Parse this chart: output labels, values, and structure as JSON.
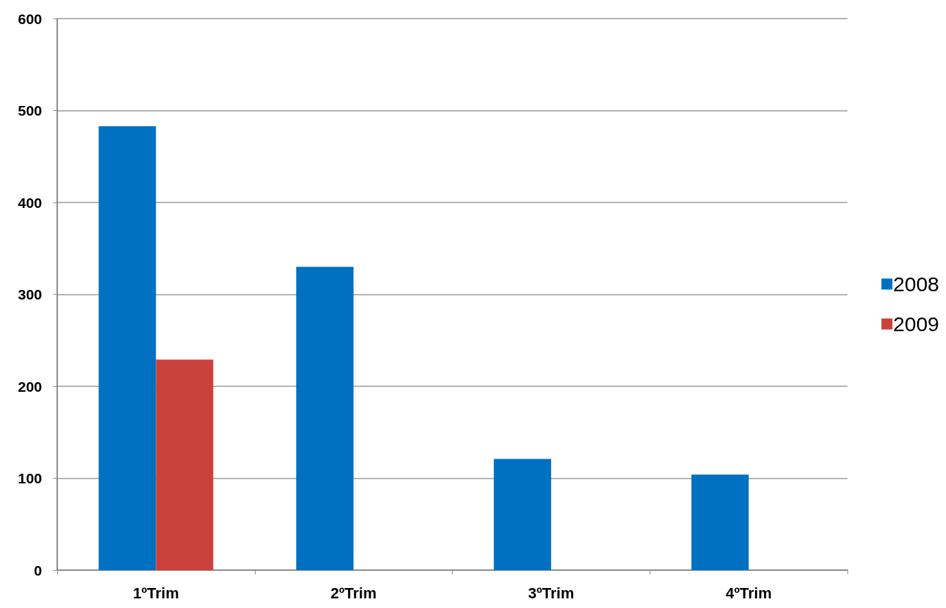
{
  "chart_data": {
    "type": "bar",
    "categories": [
      "1ºTrim",
      "2ºTrim",
      "3ºTrim",
      "4ºTrim"
    ],
    "series": [
      {
        "name": "2008",
        "color": "#0070c0",
        "values": [
          483,
          330,
          121,
          104
        ]
      },
      {
        "name": "2009",
        "color": "#c9413a",
        "values": [
          229,
          null,
          null,
          null
        ]
      }
    ],
    "ylim": [
      0,
      600
    ],
    "yticks": [
      0,
      100,
      200,
      300,
      400,
      500,
      600
    ],
    "grid": "y",
    "legend": "right"
  }
}
